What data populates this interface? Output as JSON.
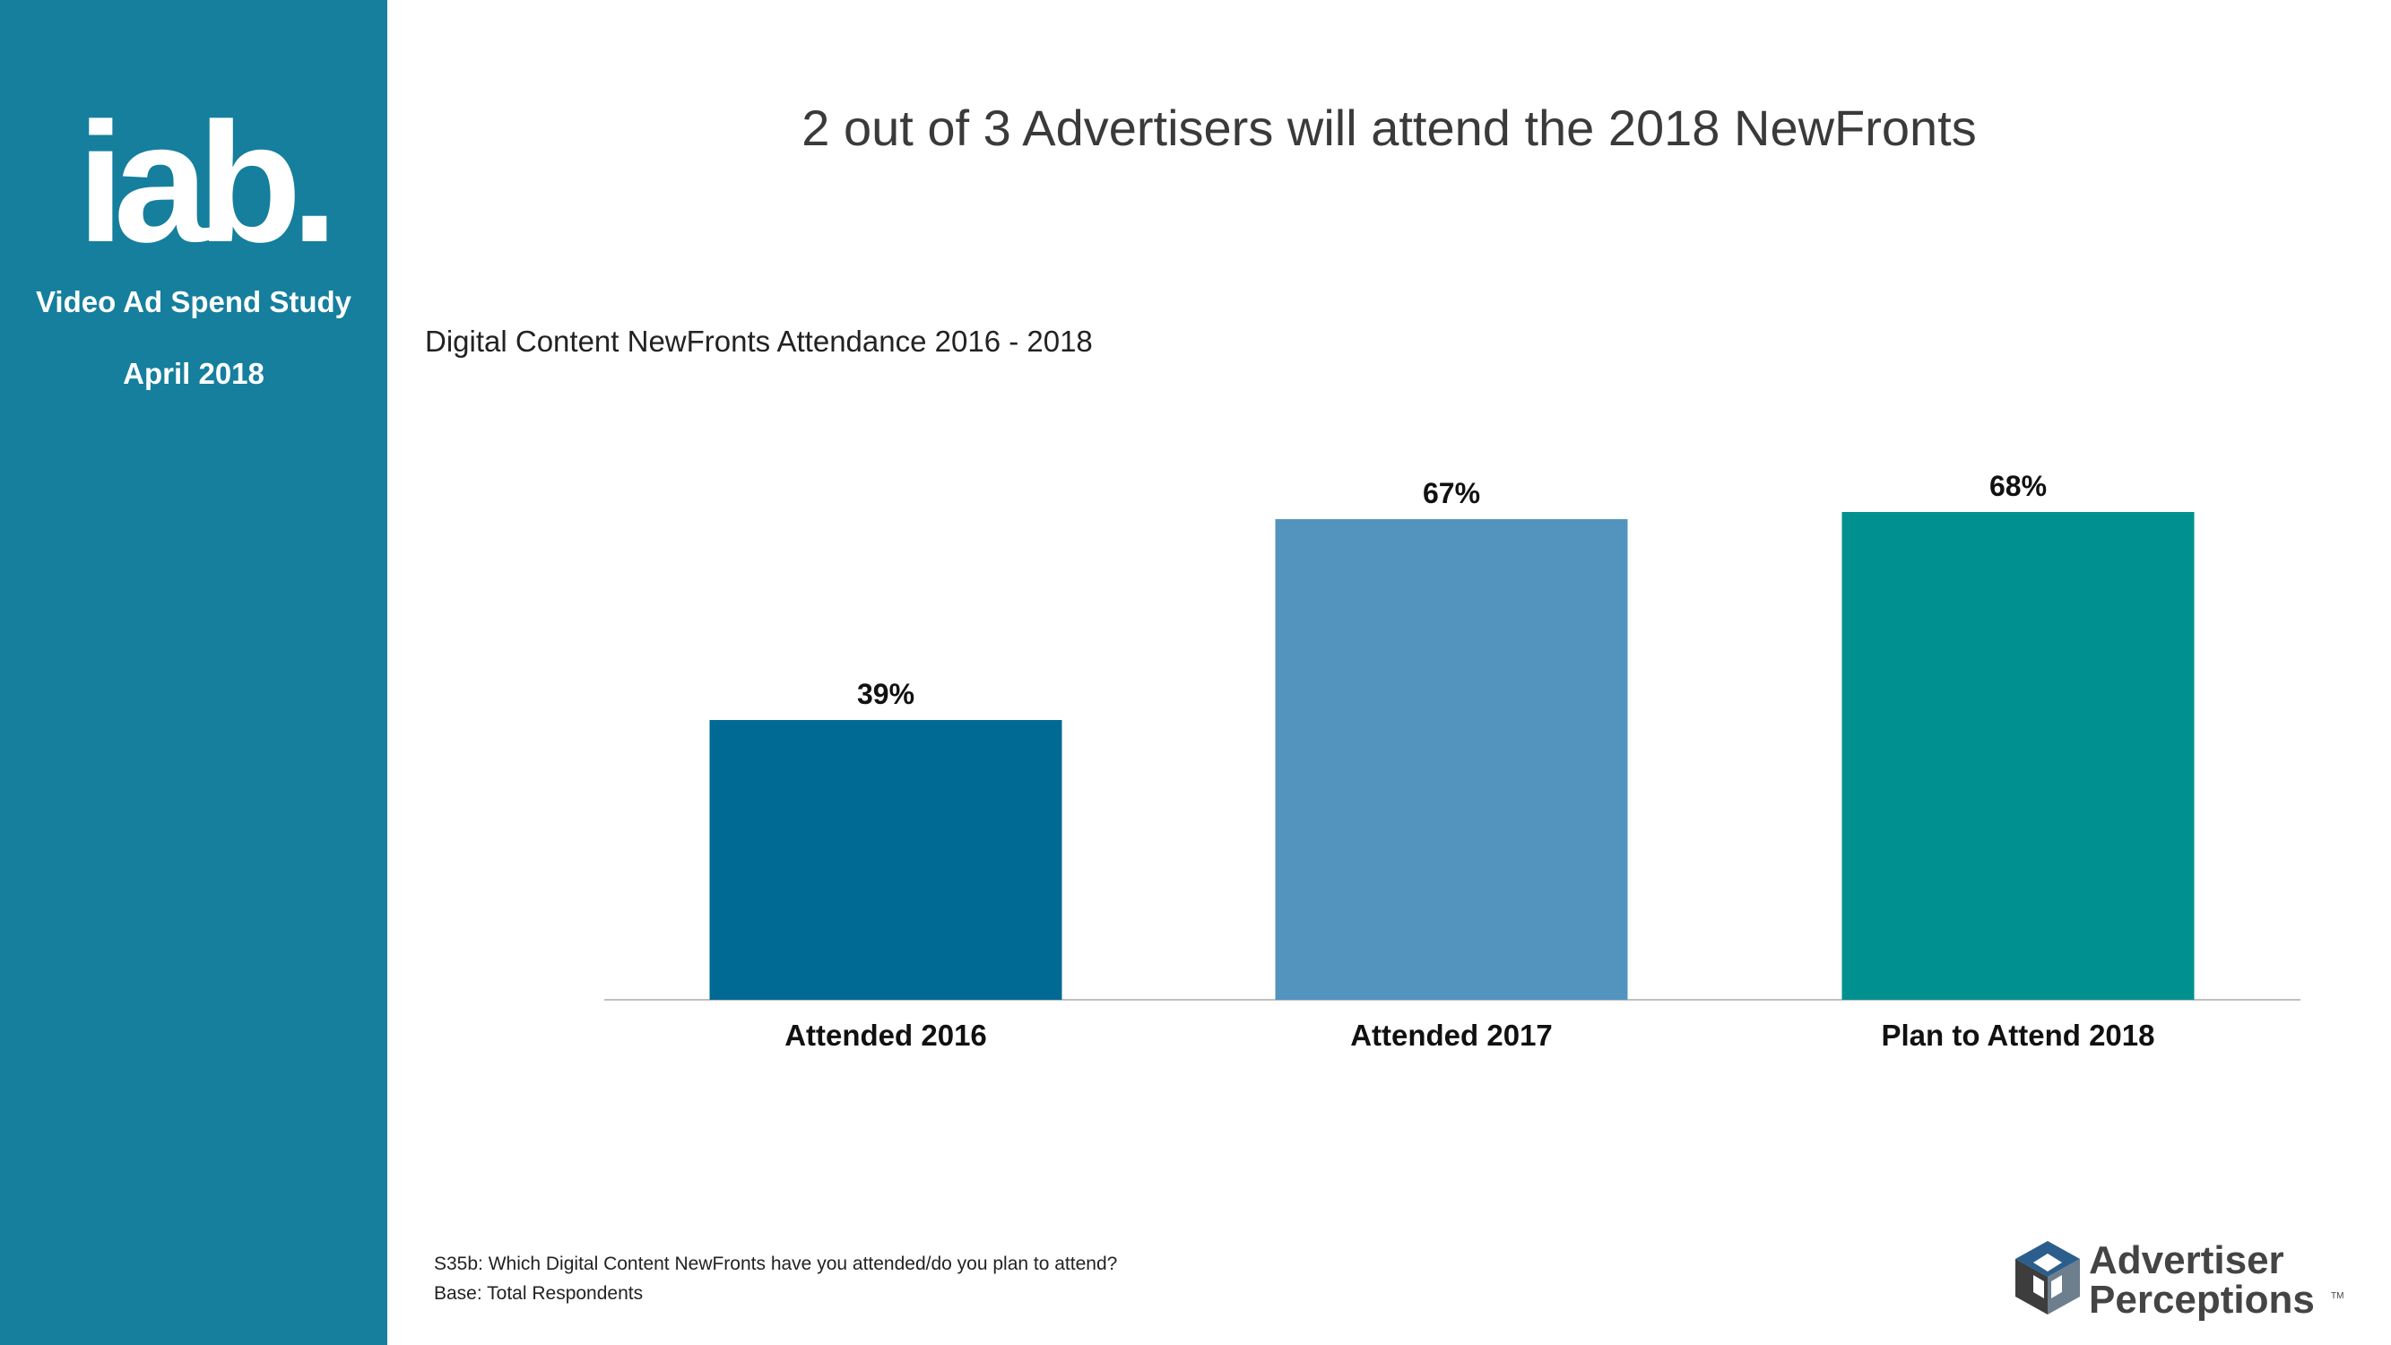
{
  "sidebar": {
    "logo_text": "iab.",
    "study_name": "Video Ad Spend Study",
    "study_date": "April 2018",
    "background_color": "#157f9d"
  },
  "slide": {
    "title": "2 out of 3 Advertisers will attend the 2018 NewFronts"
  },
  "footnotes": {
    "question": "S35b: Which Digital Content NewFronts have you attended/do you plan to attend?",
    "base": "Base:  Total Respondents"
  },
  "brand": {
    "line1": "Advertiser",
    "line2": "Perceptions",
    "trademark": "TM"
  },
  "chart_data": {
    "type": "bar",
    "title": "Digital Content NewFronts Attendance 2016 - 2018",
    "categories": [
      "Attended 2016",
      "Attended 2017",
      "Plan to Attend 2018"
    ],
    "values": [
      39,
      67,
      68
    ],
    "data_labels": [
      "39%",
      "67%",
      "68%"
    ],
    "colors": [
      "#006a94",
      "#5294be",
      "#009090"
    ],
    "unit": "%",
    "ylim": [
      0,
      100
    ],
    "grid": false,
    "legend": "none",
    "xlabel": "",
    "ylabel": ""
  }
}
